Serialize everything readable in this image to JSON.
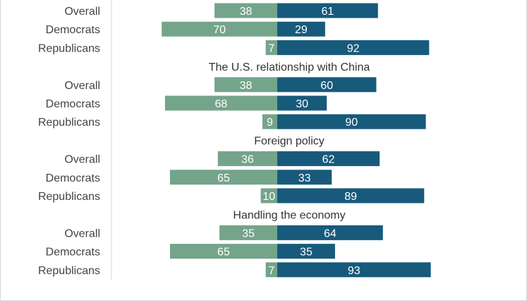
{
  "colors": {
    "left": "#74a48a",
    "right": "#175a7b"
  },
  "chart_data": {
    "type": "bar",
    "orientation": "horizontal-diverging",
    "series": [
      {
        "key": "left",
        "color": "#74a48a"
      },
      {
        "key": "right",
        "color": "#175a7b"
      }
    ],
    "groups": [
      {
        "title": "",
        "rows": [
          {
            "label": "Overall",
            "left": 38,
            "right": 61
          },
          {
            "label": "Democrats",
            "left": 70,
            "right": 29
          },
          {
            "label": "Republicans",
            "left": 7,
            "right": 92
          }
        ]
      },
      {
        "title": "The U.S. relationship with China",
        "rows": [
          {
            "label": "Overall",
            "left": 38,
            "right": 60
          },
          {
            "label": "Democrats",
            "left": 68,
            "right": 30
          },
          {
            "label": "Republicans",
            "left": 9,
            "right": 90
          }
        ]
      },
      {
        "title": "Foreign policy",
        "rows": [
          {
            "label": "Overall",
            "left": 36,
            "right": 62
          },
          {
            "label": "Democrats",
            "left": 65,
            "right": 33
          },
          {
            "label": "Republicans",
            "left": 10,
            "right": 89
          }
        ]
      },
      {
        "title": "Handling the economy",
        "rows": [
          {
            "label": "Overall",
            "left": 35,
            "right": 64
          },
          {
            "label": "Democrats",
            "left": 65,
            "right": 35
          },
          {
            "label": "Republicans",
            "left": 7,
            "right": 93
          }
        ]
      }
    ]
  }
}
